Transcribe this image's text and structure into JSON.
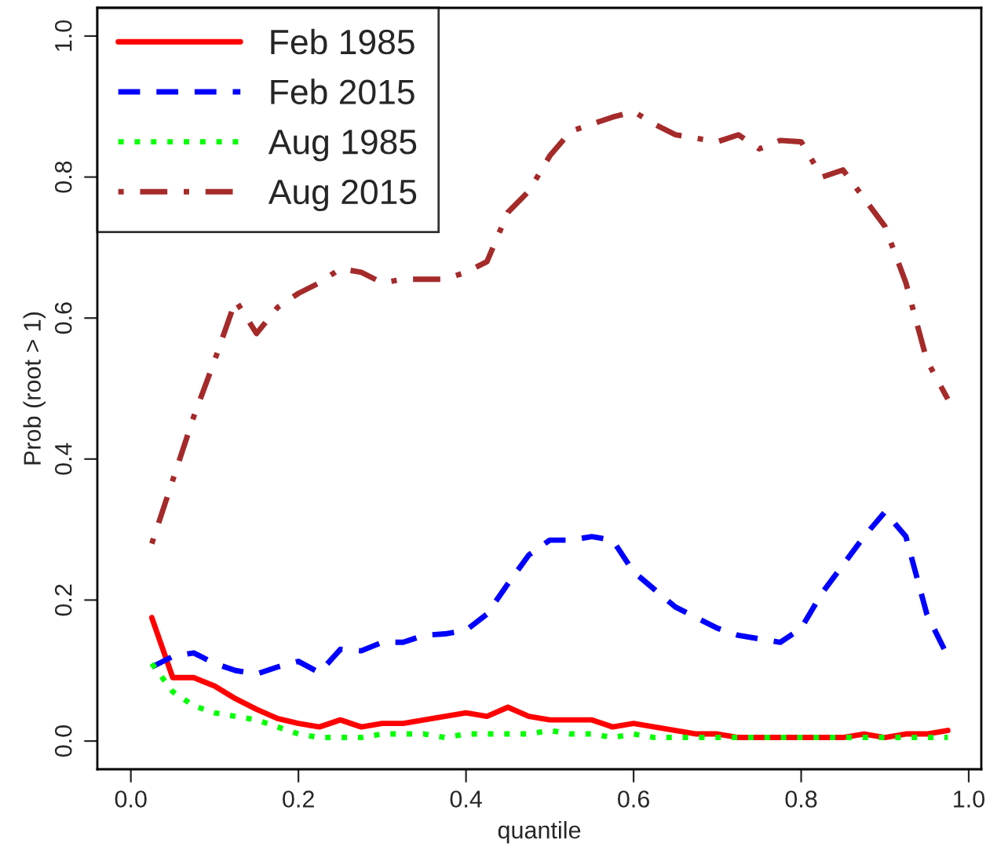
{
  "chart_data": {
    "type": "line",
    "xlabel": "quantile",
    "ylabel": "Prob (root > 1)",
    "x": [
      0.025,
      0.05,
      0.075,
      0.1,
      0.125,
      0.15,
      0.175,
      0.2,
      0.225,
      0.25,
      0.275,
      0.3,
      0.325,
      0.35,
      0.375,
      0.4,
      0.425,
      0.45,
      0.475,
      0.5,
      0.525,
      0.55,
      0.575,
      0.6,
      0.625,
      0.65,
      0.675,
      0.7,
      0.725,
      0.75,
      0.775,
      0.8,
      0.825,
      0.85,
      0.875,
      0.9,
      0.925,
      0.95,
      0.975
    ],
    "series": [
      {
        "name": "Feb 1985",
        "color": "#ff0000",
        "line_style": "solid",
        "values": [
          0.175,
          0.09,
          0.09,
          0.078,
          0.06,
          0.045,
          0.032,
          0.025,
          0.02,
          0.03,
          0.02,
          0.025,
          0.025,
          0.03,
          0.035,
          0.04,
          0.035,
          0.048,
          0.035,
          0.03,
          0.03,
          0.03,
          0.02,
          0.025,
          0.02,
          0.015,
          0.01,
          0.01,
          0.005,
          0.005,
          0.005,
          0.005,
          0.005,
          0.005,
          0.01,
          0.005,
          0.01,
          0.01,
          0.015
        ]
      },
      {
        "name": "Feb 2015",
        "color": "#0000ff",
        "line_style": "dashed",
        "values": [
          0.105,
          0.12,
          0.125,
          0.11,
          0.1,
          0.095,
          0.105,
          0.113,
          0.097,
          0.13,
          0.128,
          0.14,
          0.14,
          0.15,
          0.152,
          0.157,
          0.18,
          0.223,
          0.264,
          0.285,
          0.285,
          0.29,
          0.285,
          0.24,
          0.215,
          0.19,
          0.175,
          0.16,
          0.15,
          0.145,
          0.14,
          0.16,
          0.21,
          0.25,
          0.29,
          0.325,
          0.29,
          0.18,
          0.12
        ]
      },
      {
        "name": "Aug 1985",
        "color": "#00ff00",
        "line_style": "dotted",
        "values": [
          0.11,
          0.07,
          0.05,
          0.04,
          0.035,
          0.03,
          0.02,
          0.01,
          0.005,
          0.005,
          0.005,
          0.01,
          0.01,
          0.01,
          0.005,
          0.01,
          0.01,
          0.01,
          0.01,
          0.015,
          0.01,
          0.01,
          0.005,
          0.01,
          0.005,
          0.005,
          0.005,
          0.005,
          0.005,
          0.005,
          0.005,
          0.005,
          0.005,
          0.005,
          0.005,
          0.005,
          0.005,
          0.005,
          0.005
        ]
      },
      {
        "name": "Aug 2015",
        "color": "#a52a2a",
        "line_style": "dashdot",
        "values": [
          0.28,
          0.37,
          0.46,
          0.54,
          0.625,
          0.578,
          0.615,
          0.635,
          0.65,
          0.67,
          0.665,
          0.65,
          0.655,
          0.655,
          0.655,
          0.665,
          0.68,
          0.75,
          0.78,
          0.83,
          0.865,
          0.875,
          0.885,
          0.893,
          0.875,
          0.86,
          0.855,
          0.85,
          0.86,
          0.84,
          0.852,
          0.85,
          0.8,
          0.81,
          0.77,
          0.73,
          0.65,
          0.54,
          0.485
        ]
      }
    ],
    "xlim": [
      -0.04,
      1.015
    ],
    "ylim": [
      -0.04,
      1.04
    ],
    "xticks": [
      {
        "value": 0,
        "label": "0.0"
      },
      0.2,
      0.4,
      0.6,
      0.8,
      {
        "value": 1,
        "label": "1.0"
      }
    ],
    "yticks": [
      {
        "value": 0,
        "label": "0.0"
      },
      0.2,
      0.4,
      0.6,
      0.8,
      {
        "value": 1,
        "label": "1.0"
      }
    ],
    "grid": false,
    "legend": "top left"
  }
}
